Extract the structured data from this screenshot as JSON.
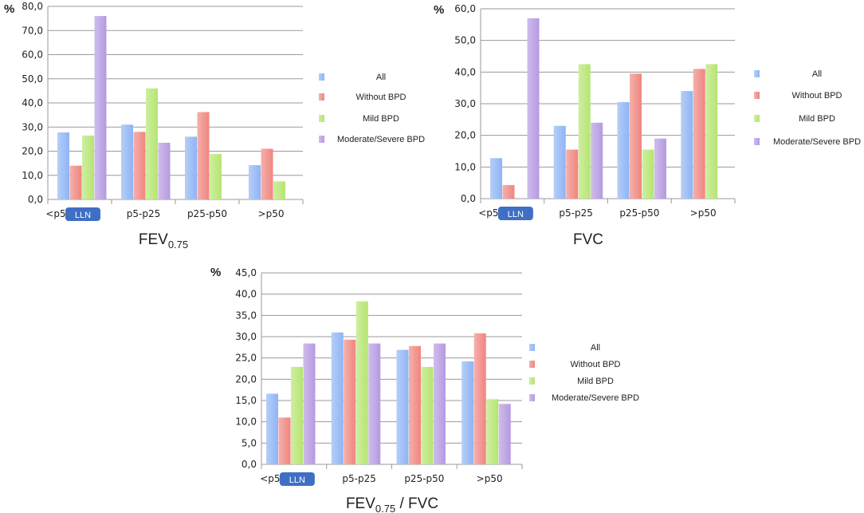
{
  "colors": {
    "All": "#8fb4f4",
    "Without BPD": "#f0857f",
    "Mild BPD": "#b5e570",
    "Moderate/Severe BPD": "#b59ae0",
    "grid": "#9a9a9a",
    "llnBadge": "#3f6fc5"
  },
  "llnBadge": "LLN",
  "chart_data": [
    {
      "type": "bar",
      "title": "FEV",
      "title_sub": "0.75",
      "title_after": "",
      "ylabel": "%",
      "ylim": [
        0,
        80
      ],
      "yticks": [
        "0,0",
        "10,0",
        "20,0",
        "30,0",
        "40,0",
        "50,0",
        "60,0",
        "70,0",
        "80,0"
      ],
      "categories": [
        "<p5",
        "p5-p25",
        "p25-p50",
        ">p50"
      ],
      "series": [
        {
          "name": "All",
          "values": [
            27.8,
            31.0,
            26.0,
            14.2
          ]
        },
        {
          "name": "Without BPD",
          "values": [
            14.0,
            28.0,
            36.2,
            21.0
          ]
        },
        {
          "name": "Mild BPD",
          "values": [
            26.5,
            46.0,
            18.8,
            7.5
          ]
        },
        {
          "name": "Moderate/Severe BPD",
          "values": [
            76.0,
            23.5,
            0,
            0
          ]
        }
      ]
    },
    {
      "type": "bar",
      "title": "FVC",
      "title_sub": "",
      "title_after": "",
      "ylabel": "%",
      "ylim": [
        0,
        60
      ],
      "yticks": [
        "0,0",
        "10,0",
        "20,0",
        "30,0",
        "40,0",
        "50,0",
        "60,0"
      ],
      "categories": [
        "<p5",
        "p5-p25",
        "p25-p50",
        ">p50"
      ],
      "series": [
        {
          "name": "All",
          "values": [
            12.8,
            23.0,
            30.5,
            34.0
          ]
        },
        {
          "name": "Without BPD",
          "values": [
            4.3,
            15.5,
            39.5,
            41.0
          ]
        },
        {
          "name": "Mild BPD",
          "values": [
            0,
            42.5,
            15.5,
            42.5
          ]
        },
        {
          "name": "Moderate/Severe BPD",
          "values": [
            57.0,
            24.0,
            19.0,
            0
          ]
        }
      ]
    },
    {
      "type": "bar",
      "title": "FEV",
      "title_sub": "0.75",
      "title_after": " / FVC",
      "ylabel": "%",
      "ylim": [
        0,
        45
      ],
      "yticks": [
        "0,0",
        "5,0",
        "10,0",
        "15,0",
        "20,0",
        "25,0",
        "30,0",
        "35,0",
        "40,0",
        "45,0"
      ],
      "categories": [
        "<p5",
        "p5-p25",
        "p25-p50",
        ">p50"
      ],
      "series": [
        {
          "name": "All",
          "values": [
            16.6,
            31.0,
            26.9,
            24.2
          ]
        },
        {
          "name": "Without BPD",
          "values": [
            11.0,
            29.3,
            27.8,
            30.8
          ]
        },
        {
          "name": "Mild BPD",
          "values": [
            22.9,
            38.3,
            22.9,
            15.3
          ]
        },
        {
          "name": "Moderate/Severe BPD",
          "values": [
            28.4,
            28.4,
            28.4,
            14.2
          ]
        }
      ]
    }
  ]
}
